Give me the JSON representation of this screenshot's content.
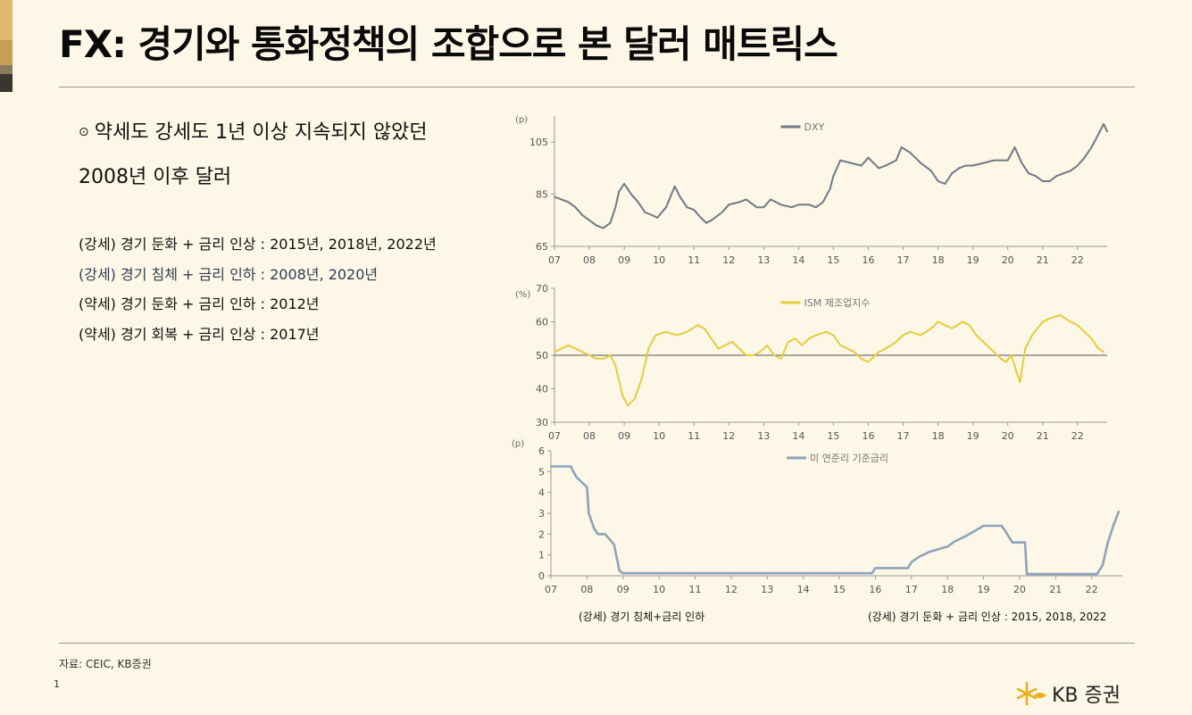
{
  "colors": {
    "accent_strip": [
      "#e2b86e",
      "#c79d57",
      "#8a7a5e",
      "#3a3530"
    ],
    "dxy": "#6f7a86",
    "ism": "#e6cc3e",
    "ffr": "#8ea3bd",
    "axis": "#9a9a9a"
  },
  "header": {
    "title": "FX: 경기와 통화정책의 조합으로 본 달러 매트릭스"
  },
  "body": {
    "bullet_icon": "circle-dot-icon",
    "heading_line1": "약세도 강세도 1년 이상 지속되지 않았던",
    "heading_line2": "2008년 이후 달러",
    "cases": [
      "(강세) 경기 둔화 + 금리 인상 : 2015년, 2018년, 2022년",
      "(강세) 경기 침체 + 금리 인하 : 2008년, 2020년",
      "(약세) 경기 둔화 + 금리 인하 : 2012년",
      "(약세) 경기 회복 + 금리 인상 : 2017년"
    ]
  },
  "chart_data": [
    {
      "type": "line",
      "unit_label": "(p)",
      "legend": "DXY",
      "legend_position": "top-center",
      "ylim": [
        65,
        115
      ],
      "yticks": [
        65,
        85,
        105
      ],
      "xlim": [
        2007.0,
        2022.85
      ],
      "xticks": [
        "07",
        "08",
        "09",
        "10",
        "11",
        "12",
        "13",
        "14",
        "15",
        "16",
        "17",
        "18",
        "19",
        "20",
        "21",
        "22"
      ],
      "series": [
        {
          "name": "DXY",
          "x": [
            2007.0,
            2007.2,
            2007.4,
            2007.6,
            2007.8,
            2008.0,
            2008.2,
            2008.4,
            2008.6,
            2008.75,
            2008.85,
            2009.0,
            2009.2,
            2009.4,
            2009.6,
            2009.8,
            2009.95,
            2010.2,
            2010.45,
            2010.6,
            2010.8,
            2011.0,
            2011.2,
            2011.35,
            2011.5,
            2011.8,
            2012.0,
            2012.3,
            2012.5,
            2012.8,
            2013.0,
            2013.2,
            2013.5,
            2013.8,
            2014.0,
            2014.3,
            2014.5,
            2014.7,
            2014.9,
            2015.0,
            2015.2,
            2015.5,
            2015.8,
            2016.0,
            2016.3,
            2016.5,
            2016.8,
            2016.95,
            2017.2,
            2017.5,
            2017.8,
            2018.0,
            2018.2,
            2018.4,
            2018.6,
            2018.8,
            2019.0,
            2019.3,
            2019.6,
            2019.8,
            2020.0,
            2020.2,
            2020.4,
            2020.6,
            2020.8,
            2021.0,
            2021.2,
            2021.4,
            2021.6,
            2021.8,
            2022.0,
            2022.2,
            2022.4,
            2022.6,
            2022.75,
            2022.85
          ],
          "values": [
            84,
            83,
            82,
            80,
            77,
            75,
            73,
            72,
            74,
            80,
            86,
            89,
            85,
            82,
            78,
            77,
            76,
            80,
            88,
            84,
            80,
            79,
            76,
            74,
            75,
            78,
            81,
            82,
            83,
            80,
            80,
            83,
            81,
            80,
            81,
            81,
            80,
            82,
            87,
            92,
            98,
            97,
            96,
            99,
            95,
            96,
            98,
            103,
            101,
            97,
            94,
            90,
            89,
            93,
            95,
            96,
            96,
            97,
            98,
            98,
            98,
            103,
            97,
            93,
            92,
            90,
            90,
            92,
            93,
            94,
            96,
            99,
            103,
            108,
            112,
            109
          ]
        }
      ]
    },
    {
      "type": "line",
      "unit_label": "(%)",
      "legend": "ISM 제조업지수",
      "legend_position": "top-center",
      "ylim": [
        30,
        70
      ],
      "yticks": [
        30,
        40,
        50,
        60,
        70
      ],
      "xlim": [
        2007.0,
        2022.85
      ],
      "xticks": [
        "07",
        "08",
        "09",
        "10",
        "11",
        "12",
        "13",
        "14",
        "15",
        "16",
        "17",
        "18",
        "19",
        "20",
        "21",
        "22"
      ],
      "series": [
        {
          "name": "ISM 제조업지수",
          "x": [
            2007.0,
            2007.2,
            2007.4,
            2007.6,
            2007.8,
            2008.0,
            2008.2,
            2008.4,
            2008.6,
            2008.75,
            2008.95,
            2009.1,
            2009.3,
            2009.5,
            2009.7,
            2009.9,
            2010.2,
            2010.5,
            2010.8,
            2011.1,
            2011.3,
            2011.5,
            2011.7,
            2011.9,
            2012.1,
            2012.3,
            2012.5,
            2012.7,
            2012.9,
            2013.1,
            2013.3,
            2013.5,
            2013.7,
            2013.9,
            2014.1,
            2014.3,
            2014.5,
            2014.8,
            2015.0,
            2015.2,
            2015.4,
            2015.6,
            2015.8,
            2016.0,
            2016.3,
            2016.5,
            2016.8,
            2017.0,
            2017.2,
            2017.5,
            2017.8,
            2018.0,
            2018.2,
            2018.4,
            2018.7,
            2018.9,
            2019.1,
            2019.4,
            2019.6,
            2019.8,
            2019.95,
            2020.1,
            2020.25,
            2020.35,
            2020.5,
            2020.7,
            2021.0,
            2021.2,
            2021.5,
            2021.8,
            2022.0,
            2022.2,
            2022.4,
            2022.6,
            2022.75
          ],
          "values": [
            51,
            52,
            53,
            52,
            51,
            50,
            49,
            49,
            50,
            47,
            38,
            35,
            37,
            43,
            52,
            56,
            57,
            56,
            57,
            59,
            58,
            55,
            52,
            53,
            54,
            52,
            50,
            50,
            51,
            53,
            50,
            49,
            54,
            55,
            53,
            55,
            56,
            57,
            56,
            53,
            52,
            51,
            49,
            48,
            51,
            52,
            54,
            56,
            57,
            56,
            58,
            60,
            59,
            58,
            60,
            59,
            56,
            53,
            51,
            49,
            48,
            50,
            45,
            42,
            52,
            56,
            60,
            61,
            62,
            60,
            59,
            57,
            55,
            52,
            51
          ]
        }
      ]
    },
    {
      "type": "line",
      "unit_label": "(p)",
      "legend": "미 연준리 기준금리",
      "legend_position": "top-center",
      "ylim": [
        0,
        6
      ],
      "yticks": [
        0,
        1,
        2,
        3,
        4,
        5,
        6
      ],
      "xlim": [
        2007.0,
        2022.85
      ],
      "xticks": [
        "07",
        "08",
        "09",
        "10",
        "11",
        "12",
        "13",
        "14",
        "15",
        "16",
        "17",
        "18",
        "19",
        "20",
        "21",
        "22"
      ],
      "series": [
        {
          "name": "미 연준리 기준금리",
          "x": [
            2007.0,
            2007.55,
            2007.7,
            2007.85,
            2008.0,
            2008.05,
            2008.2,
            2008.3,
            2008.5,
            2008.75,
            2008.9,
            2009.0,
            2015.9,
            2016.0,
            2016.9,
            2017.0,
            2017.2,
            2017.5,
            2018.0,
            2018.2,
            2018.5,
            2018.8,
            2019.0,
            2019.5,
            2019.6,
            2019.8,
            2020.15,
            2020.2,
            2022.15,
            2022.3,
            2022.45,
            2022.6,
            2022.75
          ],
          "values": [
            5.25,
            5.25,
            4.75,
            4.5,
            4.25,
            3.0,
            2.25,
            2.0,
            2.0,
            1.5,
            0.25,
            0.12,
            0.12,
            0.37,
            0.37,
            0.65,
            0.9,
            1.15,
            1.4,
            1.65,
            1.9,
            2.2,
            2.4,
            2.4,
            2.15,
            1.6,
            1.6,
            0.08,
            0.08,
            0.5,
            1.6,
            2.4,
            3.1
          ]
        }
      ]
    }
  ],
  "footnotes": {
    "left": "(강세) 경기 침체+금리 인하",
    "right": "(강세) 경기 둔화 + 금리 인상 : 2015, 2018, 2022"
  },
  "source": "자료: CEIC, KB증권",
  "page_number": "1",
  "brand": {
    "icon": "kb-star-logo-icon",
    "name": "KB 증권"
  }
}
